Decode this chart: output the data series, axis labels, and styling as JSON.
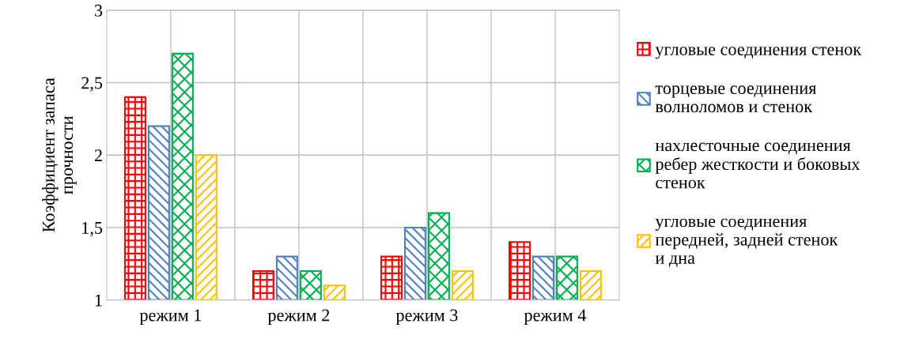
{
  "chart_data": {
    "type": "bar",
    "ylabel": "Коэффициент запаса\nпрочности",
    "categories": [
      "режим 1",
      "режим 2",
      "режим 3",
      "режим 4"
    ],
    "series": [
      {
        "name": "угловые соединения стенок",
        "color": "#ff0000",
        "values": [
          2.4,
          1.2,
          1.3,
          1.4
        ]
      },
      {
        "name": "торцевые соединения\nволноломов и стенок",
        "color": "#4f81bd",
        "values": [
          2.2,
          1.3,
          1.5,
          1.3
        ]
      },
      {
        "name": "нахлесточные соединения\nребер жесткости и боковых\nстенок",
        "color": "#00b050",
        "values": [
          2.7,
          1.2,
          1.6,
          1.3
        ]
      },
      {
        "name": "угловые соединения\nпередней, задней стенок\nи дна",
        "color": "#ffc000",
        "values": [
          2.0,
          1.1,
          1.2,
          1.2
        ]
      }
    ],
    "ylim": [
      1,
      3
    ],
    "yticks": [
      1,
      {
        "value": 1.5,
        "label": "1,5"
      },
      2,
      {
        "value": 2.5,
        "label": "2,5"
      },
      3
    ],
    "grid": true,
    "legend": "right"
  }
}
